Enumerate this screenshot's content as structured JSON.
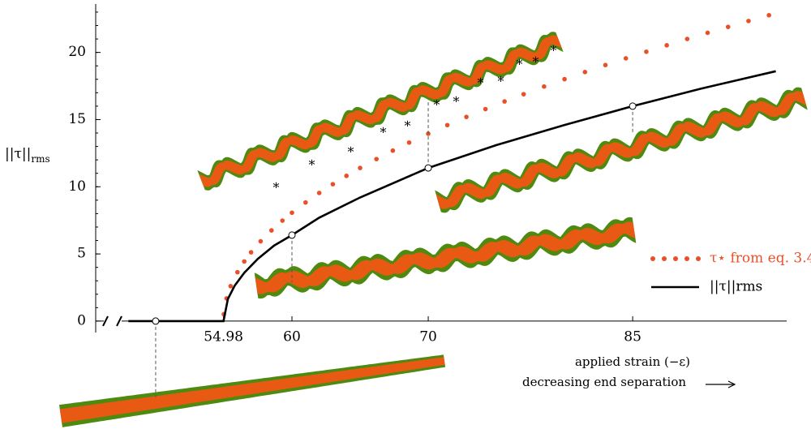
{
  "chart_data": {
    "type": "line",
    "y_label": {
      "main": "||τ||",
      "sub": "rms"
    },
    "x_label": [
      "applied strain (−ε)",
      "decreasing end separation"
    ],
    "xlim": [
      45.6,
      96.3
    ],
    "ylim": [
      -0.85,
      23.6
    ],
    "xticks": [
      54.98,
      60,
      70,
      85
    ],
    "yticks": [
      0,
      5,
      10,
      15,
      20
    ],
    "series": [
      {
        "name": "τ⋆ from eq. 3.4",
        "color": "#e8502a",
        "style": "dotted",
        "x": [
          55,
          55.2,
          55.5,
          56,
          56.5,
          57,
          57.7,
          58.5,
          59.3,
          60,
          61,
          62,
          63,
          64,
          65,
          66.2,
          67.4,
          68.6,
          70,
          71.4,
          72.8,
          74.2,
          75.6,
          77,
          78.5,
          80,
          81.5,
          83,
          84.5,
          86,
          87.5,
          89,
          90.5,
          92,
          93.5,
          95
        ],
        "values": [
          0.51,
          1.69,
          2.6,
          3.64,
          4.44,
          5.12,
          5.94,
          6.75,
          7.48,
          8.07,
          8.83,
          9.54,
          10.19,
          10.81,
          11.4,
          12.06,
          12.69,
          13.29,
          13.95,
          14.59,
          15.2,
          15.78,
          16.35,
          16.89,
          17.46,
          18.01,
          18.54,
          19.06,
          19.56,
          20.05,
          20.53,
          21.0,
          21.46,
          21.9,
          22.34,
          22.77
        ]
      },
      {
        "name": "||τ||rms",
        "color": "#000000",
        "style": "solid",
        "x": [
          48,
          50,
          54.98,
          55.3,
          55.8,
          56.5,
          57.5,
          58.7,
          60,
          62,
          65,
          70,
          75,
          80,
          85,
          90,
          95.5
        ],
        "values": [
          0,
          0,
          0,
          1.65,
          2.64,
          3.6,
          4.64,
          5.63,
          6.4,
          7.7,
          9.2,
          11.4,
          13.1,
          14.6,
          16.0,
          17.3,
          18.6
        ],
        "markers": [
          1,
          8,
          11,
          14
        ]
      }
    ]
  }
}
